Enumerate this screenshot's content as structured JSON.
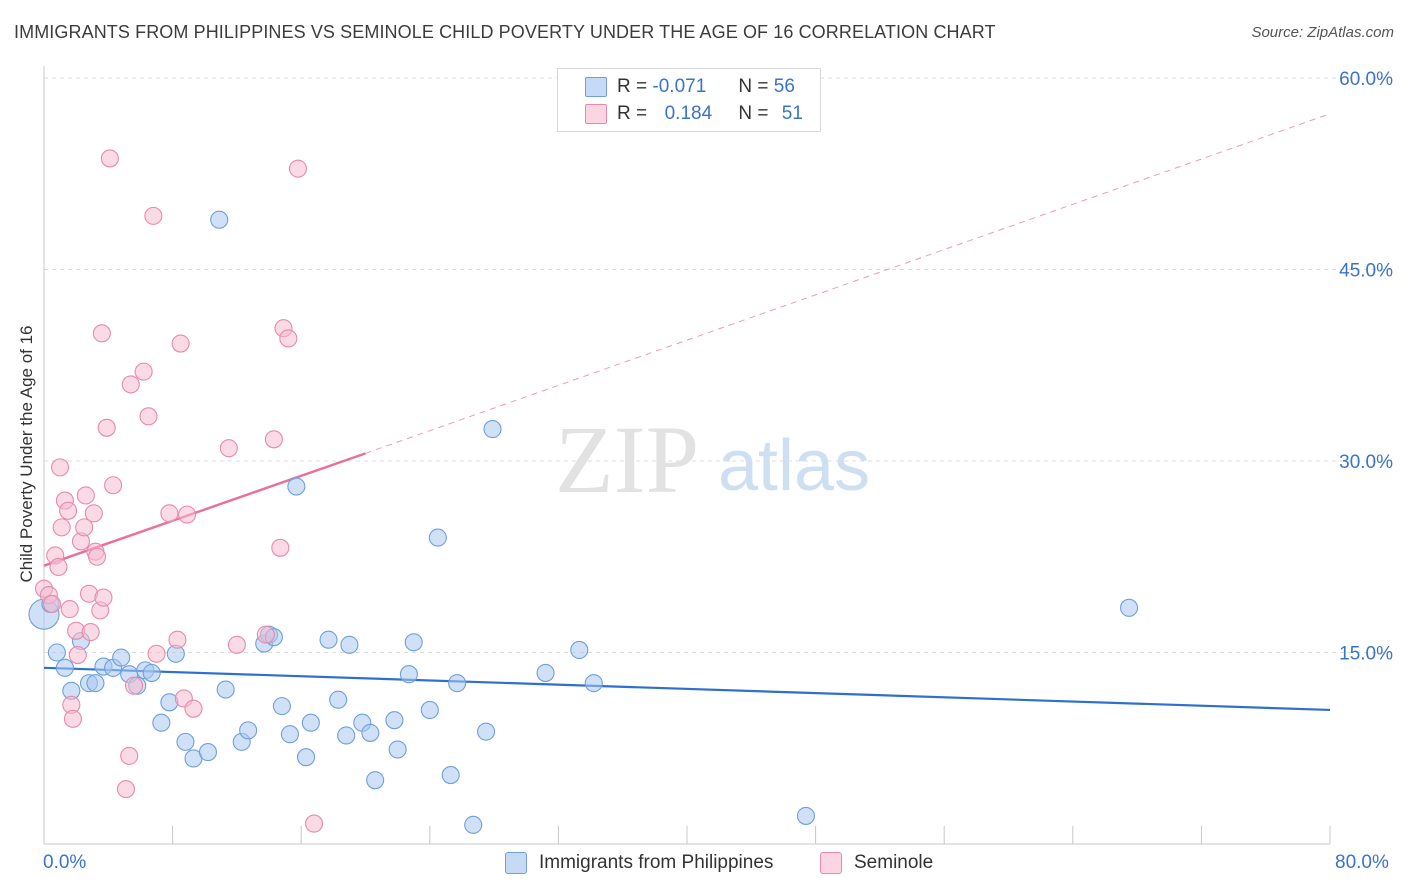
{
  "title": "IMMIGRANTS FROM PHILIPPINES VS SEMINOLE CHILD POVERTY UNDER THE AGE OF 16 CORRELATION CHART",
  "source": "Source: ZipAtlas.com",
  "watermark": {
    "zip": "ZIP",
    "atlas": "atlas"
  },
  "legend_top": {
    "rows": [
      {
        "r_label": "R =",
        "r_value": "-0.071",
        "n_label": "N =",
        "n_value": "56",
        "color": "#aac8f0"
      },
      {
        "r_label": "R =",
        "r_value": "0.184",
        "n_label": "N =",
        "n_value": "51",
        "color": "#f6bcd0"
      }
    ]
  },
  "chart_data": {
    "type": "scatter",
    "title": "IMMIGRANTS FROM PHILIPPINES VS SEMINOLE CHILD POVERTY UNDER THE AGE OF 16 CORRELATION CHART",
    "xlabel": "",
    "ylabel": "Child Poverty Under the Age of 16",
    "xlim": [
      0,
      80
    ],
    "ylim": [
      0,
      60
    ],
    "x_tick_labels": {
      "left": "0.0%",
      "right": "80.0%"
    },
    "y_ticks": [
      15,
      30,
      45,
      60
    ],
    "y_tick_labels": [
      "15.0%",
      "30.0%",
      "45.0%",
      "60.0%"
    ],
    "legend_position": "bottom-center",
    "series": [
      {
        "name": "Immigrants from Philippines",
        "color": "#aac8f0",
        "stroke": "#6f9fdc",
        "trend": {
          "x0": 0,
          "y0": 13.8,
          "x1": 80,
          "y1": 10.5,
          "dashed_from": null
        },
        "points": [
          [
            0.0,
            18.0
          ],
          [
            0.8,
            15.0
          ],
          [
            1.3,
            13.8
          ],
          [
            1.7,
            12.0
          ],
          [
            2.3,
            15.9
          ],
          [
            2.8,
            12.6
          ],
          [
            3.2,
            12.6
          ],
          [
            3.7,
            13.9
          ],
          [
            4.3,
            13.8
          ],
          [
            4.8,
            14.6
          ],
          [
            5.3,
            13.3
          ],
          [
            5.8,
            12.4
          ],
          [
            6.3,
            13.6
          ],
          [
            6.7,
            13.4
          ],
          [
            7.3,
            9.5
          ],
          [
            7.8,
            11.1
          ],
          [
            8.2,
            14.9
          ],
          [
            8.8,
            8.0
          ],
          [
            9.3,
            6.7
          ],
          [
            10.2,
            7.2
          ],
          [
            10.9,
            48.9
          ],
          [
            11.3,
            12.1
          ],
          [
            12.3,
            8.0
          ],
          [
            12.7,
            8.9
          ],
          [
            13.7,
            15.7
          ],
          [
            14.0,
            16.4
          ],
          [
            14.3,
            16.2
          ],
          [
            14.8,
            10.8
          ],
          [
            15.3,
            8.6
          ],
          [
            15.7,
            28.0
          ],
          [
            16.3,
            6.8
          ],
          [
            16.6,
            9.5
          ],
          [
            17.7,
            16.0
          ],
          [
            18.3,
            11.3
          ],
          [
            18.8,
            8.5
          ],
          [
            19.0,
            15.6
          ],
          [
            19.8,
            9.5
          ],
          [
            20.3,
            8.7
          ],
          [
            20.6,
            5.0
          ],
          [
            21.8,
            9.7
          ],
          [
            22.0,
            7.4
          ],
          [
            22.7,
            13.3
          ],
          [
            23.0,
            15.8
          ],
          [
            24.0,
            10.5
          ],
          [
            24.5,
            24.0
          ],
          [
            25.3,
            5.4
          ],
          [
            25.7,
            12.6
          ],
          [
            26.7,
            1.5
          ],
          [
            27.5,
            8.8
          ],
          [
            27.9,
            32.5
          ],
          [
            31.2,
            13.4
          ],
          [
            33.3,
            15.2
          ],
          [
            34.2,
            12.6
          ],
          [
            47.4,
            2.2
          ],
          [
            67.5,
            18.5
          ],
          [
            0.4,
            18.8
          ]
        ]
      },
      {
        "name": "Seminole",
        "color": "#f6bcd0",
        "stroke": "#e98aaa",
        "trend": {
          "x0": 0,
          "y0": 21.8,
          "x1": 20,
          "y1": 30.6,
          "dashed_to_x": 80,
          "dashed_to_y": 57.2
        },
        "points": [
          [
            0.0,
            20.0
          ],
          [
            0.3,
            19.5
          ],
          [
            0.5,
            18.8
          ],
          [
            0.7,
            22.6
          ],
          [
            0.9,
            21.7
          ],
          [
            1.0,
            29.5
          ],
          [
            1.1,
            24.8
          ],
          [
            1.3,
            26.9
          ],
          [
            1.5,
            26.1
          ],
          [
            1.6,
            18.4
          ],
          [
            1.7,
            10.9
          ],
          [
            1.8,
            9.8
          ],
          [
            2.0,
            16.7
          ],
          [
            2.1,
            14.8
          ],
          [
            2.3,
            23.7
          ],
          [
            2.5,
            24.8
          ],
          [
            2.6,
            27.3
          ],
          [
            2.8,
            19.6
          ],
          [
            2.9,
            16.6
          ],
          [
            3.1,
            25.9
          ],
          [
            3.2,
            22.9
          ],
          [
            3.3,
            22.5
          ],
          [
            3.5,
            18.3
          ],
          [
            3.6,
            40.0
          ],
          [
            3.7,
            19.3
          ],
          [
            3.9,
            32.6
          ],
          [
            4.1,
            53.7
          ],
          [
            4.3,
            28.1
          ],
          [
            5.3,
            6.9
          ],
          [
            5.1,
            4.3
          ],
          [
            5.4,
            36.0
          ],
          [
            5.6,
            12.4
          ],
          [
            6.2,
            37.0
          ],
          [
            6.5,
            33.5
          ],
          [
            6.8,
            49.2
          ],
          [
            7.0,
            14.9
          ],
          [
            7.8,
            25.9
          ],
          [
            8.3,
            16.0
          ],
          [
            8.5,
            39.2
          ],
          [
            8.7,
            11.4
          ],
          [
            8.9,
            25.8
          ],
          [
            9.3,
            10.6
          ],
          [
            11.5,
            31.0
          ],
          [
            12.0,
            15.6
          ],
          [
            13.8,
            16.4
          ],
          [
            14.3,
            31.7
          ],
          [
            14.7,
            23.2
          ],
          [
            14.9,
            40.4
          ],
          [
            15.2,
            39.6
          ],
          [
            15.8,
            52.9
          ],
          [
            16.8,
            1.6
          ]
        ]
      }
    ]
  }
}
